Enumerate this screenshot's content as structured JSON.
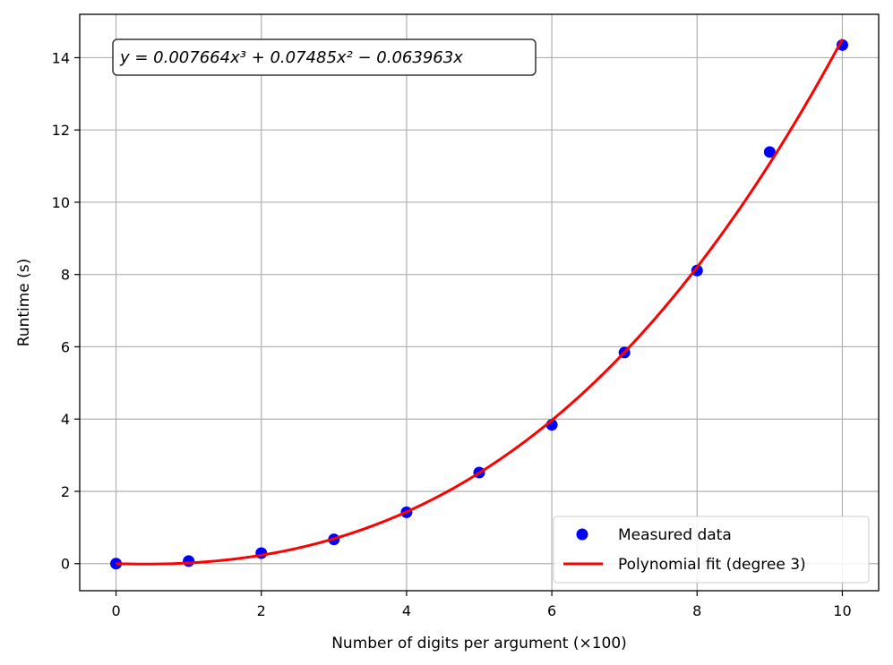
{
  "chart_data": {
    "type": "scatter",
    "title": "",
    "xlabel": "Number of digits per argument (×100)",
    "ylabel": "Runtime (s)",
    "xlim": [
      -0.5,
      10.5
    ],
    "ylim": [
      -0.75,
      15.2
    ],
    "xticks": [
      0,
      2,
      4,
      6,
      8,
      10
    ],
    "yticks": [
      0,
      2,
      4,
      6,
      8,
      10,
      12,
      14
    ],
    "grid": true,
    "legend_position": "bottom-right",
    "series": [
      {
        "name": "Measured data",
        "kind": "scatter",
        "color": "#0000ff",
        "x": [
          0,
          1,
          2,
          3,
          4,
          5,
          6,
          7,
          8,
          9,
          10
        ],
        "y": [
          0.0,
          0.07,
          0.29,
          0.67,
          1.42,
          2.52,
          3.84,
          5.84,
          8.11,
          11.39,
          14.35
        ]
      },
      {
        "name": "Polynomial fit (degree 3)",
        "kind": "line",
        "color": "#ff0000",
        "coefficients": [
          0.007664,
          0.07485,
          -0.063963,
          0
        ],
        "x_range": [
          0,
          10
        ]
      }
    ],
    "annotation": {
      "text": "y = 0.007664x³ + 0.07485x² − 0.063963x",
      "position": "top-left"
    }
  }
}
